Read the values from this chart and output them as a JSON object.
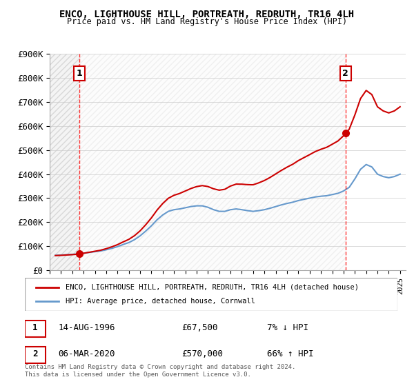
{
  "title": "ENCO, LIGHTHOUSE HILL, PORTREATH, REDRUTH, TR16 4LH",
  "subtitle": "Price paid vs. HM Land Registry's House Price Index (HPI)",
  "ylabel": "",
  "xlabel": "",
  "ylim": [
    0,
    900000
  ],
  "xlim_start": 1994.0,
  "xlim_end": 2025.5,
  "yticks": [
    0,
    100000,
    200000,
    300000,
    400000,
    500000,
    600000,
    700000,
    800000,
    900000
  ],
  "ytick_labels": [
    "£0",
    "£100K",
    "£200K",
    "£300K",
    "£400K",
    "£500K",
    "£600K",
    "£700K",
    "£800K",
    "£900K"
  ],
  "sale1_year": 1996.62,
  "sale1_price": 67500,
  "sale1_label": "1",
  "sale1_date": "14-AUG-1996",
  "sale1_price_str": "£67,500",
  "sale1_hpi": "7% ↓ HPI",
  "sale2_year": 2020.17,
  "sale2_price": 570000,
  "sale2_label": "2",
  "sale2_date": "06-MAR-2020",
  "sale2_price_str": "£570,000",
  "sale2_hpi": "66% ↑ HPI",
  "hpi_color": "#6699cc",
  "property_color": "#cc0000",
  "legend_label1": "ENCO, LIGHTHOUSE HILL, PORTREATH, REDRUTH, TR16 4LH (detached house)",
  "legend_label2": "HPI: Average price, detached house, Cornwall",
  "footer": "Contains HM Land Registry data © Crown copyright and database right 2024.\nThis data is licensed under the Open Government Licence v3.0.",
  "hpi_data_years": [
    1994.5,
    1995,
    1995.5,
    1996,
    1996.5,
    1997,
    1997.5,
    1998,
    1998.5,
    1999,
    1999.5,
    2000,
    2000.5,
    2001,
    2001.5,
    2002,
    2002.5,
    2003,
    2003.5,
    2004,
    2004.5,
    2005,
    2005.5,
    2006,
    2006.5,
    2007,
    2007.5,
    2008,
    2008.5,
    2009,
    2009.5,
    2010,
    2010.5,
    2011,
    2011.5,
    2012,
    2012.5,
    2013,
    2013.5,
    2014,
    2014.5,
    2015,
    2015.5,
    2016,
    2016.5,
    2017,
    2017.5,
    2018,
    2018.5,
    2019,
    2019.5,
    2020,
    2020.5,
    2021,
    2021.5,
    2022,
    2022.5,
    2023,
    2023.5,
    2024,
    2024.5,
    2025
  ],
  "hpi_data_values": [
    62000,
    63000,
    64500,
    66000,
    68000,
    71000,
    74000,
    77000,
    80000,
    85000,
    91000,
    98000,
    107000,
    115000,
    127000,
    143000,
    163000,
    185000,
    210000,
    230000,
    245000,
    252000,
    255000,
    260000,
    265000,
    268000,
    268000,
    262000,
    252000,
    245000,
    245000,
    252000,
    255000,
    252000,
    248000,
    245000,
    248000,
    252000,
    258000,
    265000,
    272000,
    278000,
    283000,
    290000,
    295000,
    300000,
    305000,
    308000,
    310000,
    315000,
    320000,
    330000,
    345000,
    380000,
    420000,
    440000,
    430000,
    400000,
    390000,
    385000,
    390000,
    400000
  ],
  "property_data_years": [
    1994.5,
    1996.62,
    2020.17,
    2025
  ],
  "property_data_values": [
    62000,
    67500,
    570000,
    680000
  ],
  "background_hatch_color": "#e8e8e8"
}
